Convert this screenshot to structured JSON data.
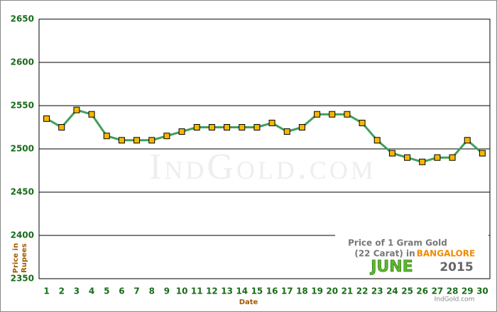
{
  "chart_data": {
    "type": "line",
    "watermark": "IndGold.com",
    "caption": {
      "line1": "Price of 1 Gram Gold",
      "line2": "(22 Carat) in",
      "city": "BANGALORE",
      "month": "JUNE",
      "year": "2015",
      "site": "IndGold.com"
    },
    "y_label_line1": "Price in",
    "y_label_line2": "Rupees",
    "x_label": "Date",
    "categories": [
      1,
      2,
      3,
      4,
      5,
      6,
      7,
      8,
      9,
      10,
      11,
      12,
      13,
      14,
      15,
      16,
      17,
      18,
      19,
      20,
      21,
      22,
      23,
      24,
      25,
      26,
      27,
      28,
      29,
      30
    ],
    "values": [
      2535,
      2525,
      2545,
      2540,
      2515,
      2510,
      2510,
      2510,
      2515,
      2520,
      2525,
      2525,
      2525,
      2525,
      2525,
      2530,
      2520,
      2525,
      2540,
      2540,
      2540,
      2530,
      2510,
      2495,
      2490,
      2485,
      2490,
      2490,
      2510,
      2495
    ],
    "color": "#3f9f5a",
    "marker_color": "#f5b800",
    "ylim": [
      2350,
      2650
    ],
    "yticks": [
      2350,
      2400,
      2450,
      2500,
      2550,
      2600,
      2650
    ],
    "grid": true
  }
}
